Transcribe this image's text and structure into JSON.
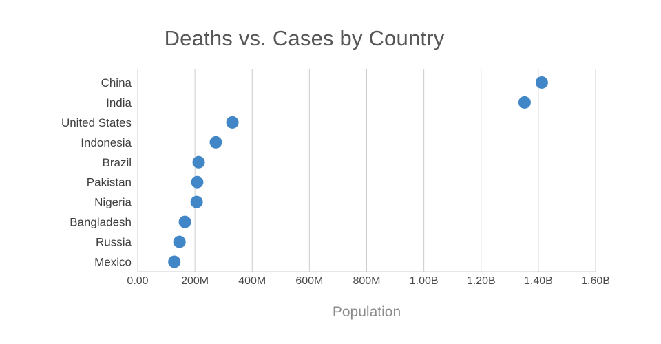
{
  "chart_data": {
    "type": "scatter",
    "orientation": "horizontal",
    "title": "Deaths vs. Cases by Country",
    "xlabel": "Population",
    "ylabel": "",
    "categories": [
      "China",
      "India",
      "United States",
      "Indonesia",
      "Brazil",
      "Pakistan",
      "Nigeria",
      "Bangladesh",
      "Russia",
      "Mexico"
    ],
    "values": [
      1412000000,
      1352000000,
      331000000,
      273000000,
      213000000,
      208000000,
      206000000,
      165000000,
      146000000,
      128000000
    ],
    "xlim": [
      0,
      1600000000
    ],
    "x_ticks": [
      {
        "value": 0,
        "label": "0.00"
      },
      {
        "value": 200000000,
        "label": "200M"
      },
      {
        "value": 400000000,
        "label": "400M"
      },
      {
        "value": 600000000,
        "label": "600M"
      },
      {
        "value": 800000000,
        "label": "800M"
      },
      {
        "value": 1000000000,
        "label": "1.00B"
      },
      {
        "value": 1200000000,
        "label": "1.20B"
      },
      {
        "value": 1400000000,
        "label": "1.40B"
      },
      {
        "value": 1600000000,
        "label": "1.60B"
      }
    ],
    "grid": true,
    "legend": false,
    "colors": {
      "marker": "#4186c6",
      "gridline": "#cccccc",
      "tick_label": "#4a4a4a",
      "title": "#565656",
      "axis_title": "#8b8b8b"
    }
  }
}
